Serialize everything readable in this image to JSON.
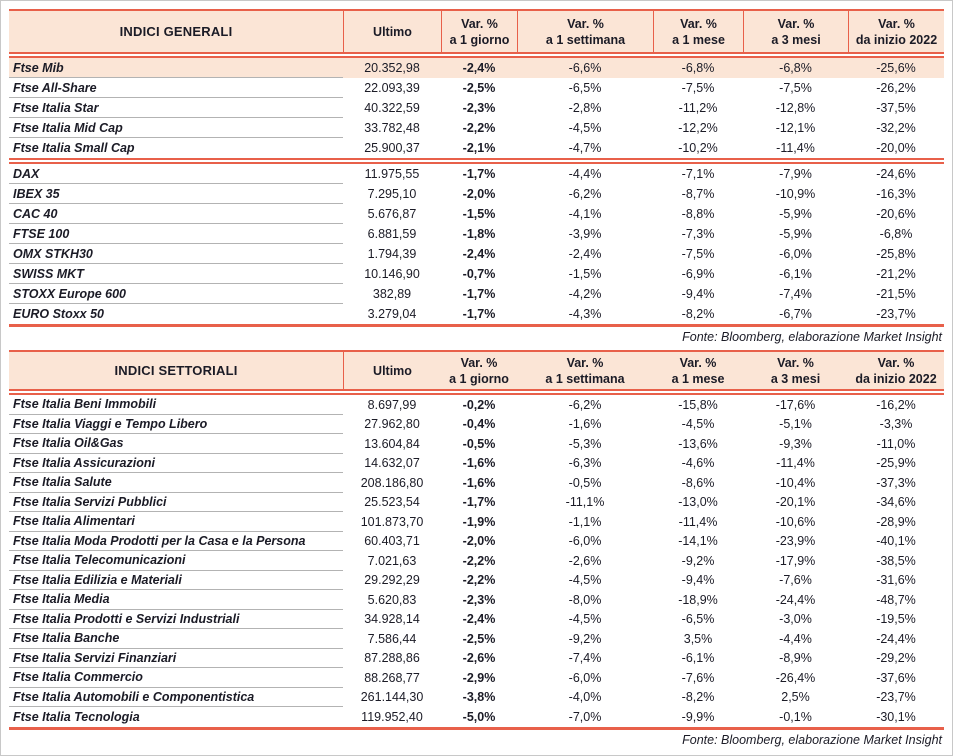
{
  "theme": {
    "accent": "#e8604a",
    "header_bg": "#fbe5d6",
    "highlight_bg": "#fbe5d6",
    "text": "#1b1b26",
    "row_divider": "#b3b3b3",
    "page_border": "#c8c8c8"
  },
  "tables": [
    {
      "name": "indici-generali",
      "title": "INDICI GENERALI",
      "columns": [
        {
          "line1": "Ultimo",
          "line2": ""
        },
        {
          "line1": "Var. %",
          "line2": "a 1 giorno"
        },
        {
          "line1": "Var. %",
          "line2": "a 1 settimana"
        },
        {
          "line1": "Var. %",
          "line2": "a 1 mese"
        },
        {
          "line1": "Var. %",
          "line2": "a 3 mesi"
        },
        {
          "line1": "Var. %",
          "line2": "da inizio 2022"
        }
      ],
      "rows": [
        {
          "label": "Ftse Mib",
          "values": [
            "20.352,98",
            "-2,4%",
            "-6,6%",
            "-6,8%",
            "-6,8%",
            "-25,6%"
          ],
          "highlight": true
        },
        {
          "label": "Ftse All-Share",
          "values": [
            "22.093,39",
            "-2,5%",
            "-6,5%",
            "-7,5%",
            "-7,5%",
            "-26,2%"
          ]
        },
        {
          "label": "Ftse Italia Star",
          "values": [
            "40.322,59",
            "-2,3%",
            "-2,8%",
            "-11,2%",
            "-12,8%",
            "-37,5%"
          ]
        },
        {
          "label": "Ftse Italia Mid Cap",
          "values": [
            "33.782,48",
            "-2,2%",
            "-4,5%",
            "-12,2%",
            "-12,1%",
            "-32,2%"
          ]
        },
        {
          "label": "Ftse Italia Small Cap",
          "values": [
            "25.900,37",
            "-2,1%",
            "-4,7%",
            "-10,2%",
            "-11,4%",
            "-20,0%"
          ],
          "divider_after": true
        },
        {
          "label": "DAX",
          "values": [
            "11.975,55",
            "-1,7%",
            "-4,4%",
            "-7,1%",
            "-7,9%",
            "-24,6%"
          ]
        },
        {
          "label": "IBEX 35",
          "values": [
            "7.295,10",
            "-2,0%",
            "-6,2%",
            "-8,7%",
            "-10,9%",
            "-16,3%"
          ]
        },
        {
          "label": "CAC 40",
          "values": [
            "5.676,87",
            "-1,5%",
            "-4,1%",
            "-8,8%",
            "-5,9%",
            "-20,6%"
          ]
        },
        {
          "label": "FTSE 100",
          "values": [
            "6.881,59",
            "-1,8%",
            "-3,9%",
            "-7,3%",
            "-5,9%",
            "-6,8%"
          ]
        },
        {
          "label": "OMX STKH30",
          "values": [
            "1.794,39",
            "-2,4%",
            "-2,4%",
            "-7,5%",
            "-6,0%",
            "-25,8%"
          ]
        },
        {
          "label": "SWISS MKT",
          "values": [
            "10.146,90",
            "-0,7%",
            "-1,5%",
            "-6,9%",
            "-6,1%",
            "-21,2%"
          ]
        },
        {
          "label": "STOXX Europe 600",
          "values": [
            "382,89",
            "-1,7%",
            "-4,2%",
            "-9,4%",
            "-7,4%",
            "-21,5%"
          ]
        },
        {
          "label": "EURO Stoxx 50",
          "values": [
            "3.279,04",
            "-1,7%",
            "-4,3%",
            "-8,2%",
            "-6,7%",
            "-23,7%"
          ]
        }
      ],
      "source": "Fonte: Bloomberg, elaborazione Market Insight"
    },
    {
      "name": "indici-settoriali",
      "title": "INDICI SETTORIALI",
      "columns": [
        {
          "line1": "Ultimo",
          "line2": ""
        },
        {
          "line1": "Var. %",
          "line2": "a 1 giorno"
        },
        {
          "line1": "Var. %",
          "line2": "a 1 settimana"
        },
        {
          "line1": "Var. %",
          "line2": "a 1 mese"
        },
        {
          "line1": "Var. %",
          "line2": "a 3 mesi"
        },
        {
          "line1": "Var. %",
          "line2": "da inizio 2022"
        }
      ],
      "rows": [
        {
          "label": "Ftse Italia Beni Immobili",
          "values": [
            "8.697,99",
            "-0,2%",
            "-6,2%",
            "-15,8%",
            "-17,6%",
            "-16,2%"
          ]
        },
        {
          "label": "Ftse Italia Viaggi e Tempo Libero",
          "values": [
            "27.962,80",
            "-0,4%",
            "-1,6%",
            "-4,5%",
            "-5,1%",
            "-3,3%"
          ]
        },
        {
          "label": "Ftse Italia Oil&Gas",
          "values": [
            "13.604,84",
            "-0,5%",
            "-5,3%",
            "-13,6%",
            "-9,3%",
            "-11,0%"
          ]
        },
        {
          "label": "Ftse Italia Assicurazioni",
          "values": [
            "14.632,07",
            "-1,6%",
            "-6,3%",
            "-4,6%",
            "-11,4%",
            "-25,9%"
          ]
        },
        {
          "label": "Ftse Italia Salute",
          "values": [
            "208.186,80",
            "-1,6%",
            "-0,5%",
            "-8,6%",
            "-10,4%",
            "-37,3%"
          ]
        },
        {
          "label": "Ftse Italia Servizi Pubblici",
          "values": [
            "25.523,54",
            "-1,7%",
            "-11,1%",
            "-13,0%",
            "-20,1%",
            "-34,6%"
          ]
        },
        {
          "label": "Ftse Italia Alimentari",
          "values": [
            "101.873,70",
            "-1,9%",
            "-1,1%",
            "-11,4%",
            "-10,6%",
            "-28,9%"
          ]
        },
        {
          "label": "Ftse Italia Moda Prodotti per la Casa e la Persona",
          "values": [
            "60.403,71",
            "-2,0%",
            "-6,0%",
            "-14,1%",
            "-23,9%",
            "-40,1%"
          ]
        },
        {
          "label": "Ftse Italia Telecomunicazioni",
          "values": [
            "7.021,63",
            "-2,2%",
            "-2,6%",
            "-9,2%",
            "-17,9%",
            "-38,5%"
          ]
        },
        {
          "label": "Ftse Italia Edilizia e Materiali",
          "values": [
            "29.292,29",
            "-2,2%",
            "-4,5%",
            "-9,4%",
            "-7,6%",
            "-31,6%"
          ]
        },
        {
          "label": "Ftse Italia Media",
          "values": [
            "5.620,83",
            "-2,3%",
            "-8,0%",
            "-18,9%",
            "-24,4%",
            "-48,7%"
          ]
        },
        {
          "label": "Ftse Italia Prodotti e Servizi Industriali",
          "values": [
            "34.928,14",
            "-2,4%",
            "-4,5%",
            "-6,5%",
            "-3,0%",
            "-19,5%"
          ]
        },
        {
          "label": "Ftse Italia Banche",
          "values": [
            "7.586,44",
            "-2,5%",
            "-9,2%",
            "3,5%",
            "-4,4%",
            "-24,4%"
          ]
        },
        {
          "label": "Ftse Italia Servizi Finanziari",
          "values": [
            "87.288,86",
            "-2,6%",
            "-7,4%",
            "-6,1%",
            "-8,9%",
            "-29,2%"
          ]
        },
        {
          "label": "Ftse Italia Commercio",
          "values": [
            "88.268,77",
            "-2,9%",
            "-6,0%",
            "-7,6%",
            "-26,4%",
            "-37,6%"
          ]
        },
        {
          "label": "Ftse Italia Automobili e Componentistica",
          "values": [
            "261.144,30",
            "-3,8%",
            "-4,0%",
            "-8,2%",
            "2,5%",
            "-23,7%"
          ]
        },
        {
          "label": "Ftse Italia Tecnologia",
          "values": [
            "119.952,40",
            "-5,0%",
            "-7,0%",
            "-9,9%",
            "-0,1%",
            "-30,1%"
          ]
        }
      ],
      "source": "Fonte: Bloomberg, elaborazione Market Insight"
    }
  ]
}
